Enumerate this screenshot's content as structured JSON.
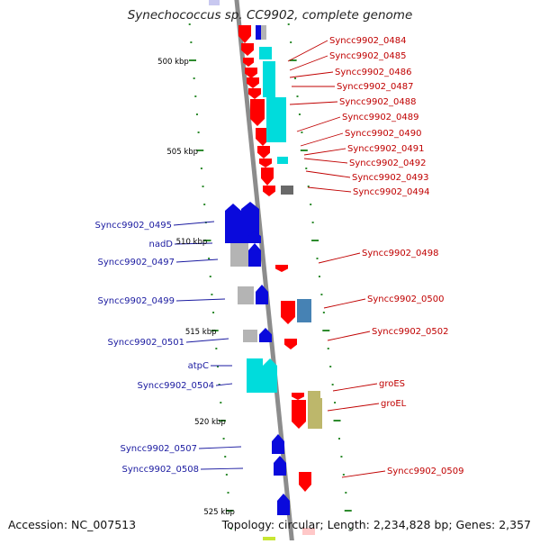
{
  "title": "Synechococcus sp. CC9902, complete genome",
  "footer": {
    "accession": "Accession: NC_007513",
    "topology": "Topology: circular; Length: 2,234,828 bp; Genes: 2,357"
  },
  "colors": {
    "backbone": "#8c8c8c",
    "tick": "#2e8b2e",
    "forward_label": "#c00000",
    "reverse_label": "#1a1aa0",
    "red": "#ff0000",
    "blue": "#0a0adc",
    "cyan": "#00dcdc",
    "gray": "#b4b4b4",
    "dark": "#555555",
    "steel": "#4682b4",
    "olive": "#bdb76b"
  },
  "scale_labels": [
    "500 kbp",
    "505 kbp",
    "510 kbp",
    "515 kbp",
    "520 kbp",
    "525 kbp"
  ],
  "forward_genes": [
    {
      "label": "Syncc9902_0484"
    },
    {
      "label": "Syncc9902_0485"
    },
    {
      "label": "Syncc9902_0486"
    },
    {
      "label": "Syncc9902_0487"
    },
    {
      "label": "Syncc9902_0488"
    },
    {
      "label": "Syncc9902_0489"
    },
    {
      "label": "Syncc9902_0490"
    },
    {
      "label": "Syncc9902_0491"
    },
    {
      "label": "Syncc9902_0492"
    },
    {
      "label": "Syncc9902_0493"
    },
    {
      "label": "Syncc9902_0494"
    },
    {
      "label": "Syncc9902_0498"
    },
    {
      "label": "Syncc9902_0500"
    },
    {
      "label": "Syncc9902_0502"
    },
    {
      "label": "groES"
    },
    {
      "label": "groEL"
    },
    {
      "label": "Syncc9902_0509"
    }
  ],
  "reverse_genes": [
    {
      "label": "Syncc9902_0495"
    },
    {
      "label": "nadD"
    },
    {
      "label": "Syncc9902_0497"
    },
    {
      "label": "Syncc9902_0499"
    },
    {
      "label": "Syncc9902_0501"
    },
    {
      "label": "atpC"
    },
    {
      "label": "Syncc9902_0504"
    },
    {
      "label": "Syncc9902_0507"
    },
    {
      "label": "Syncc9902_0508"
    }
  ]
}
